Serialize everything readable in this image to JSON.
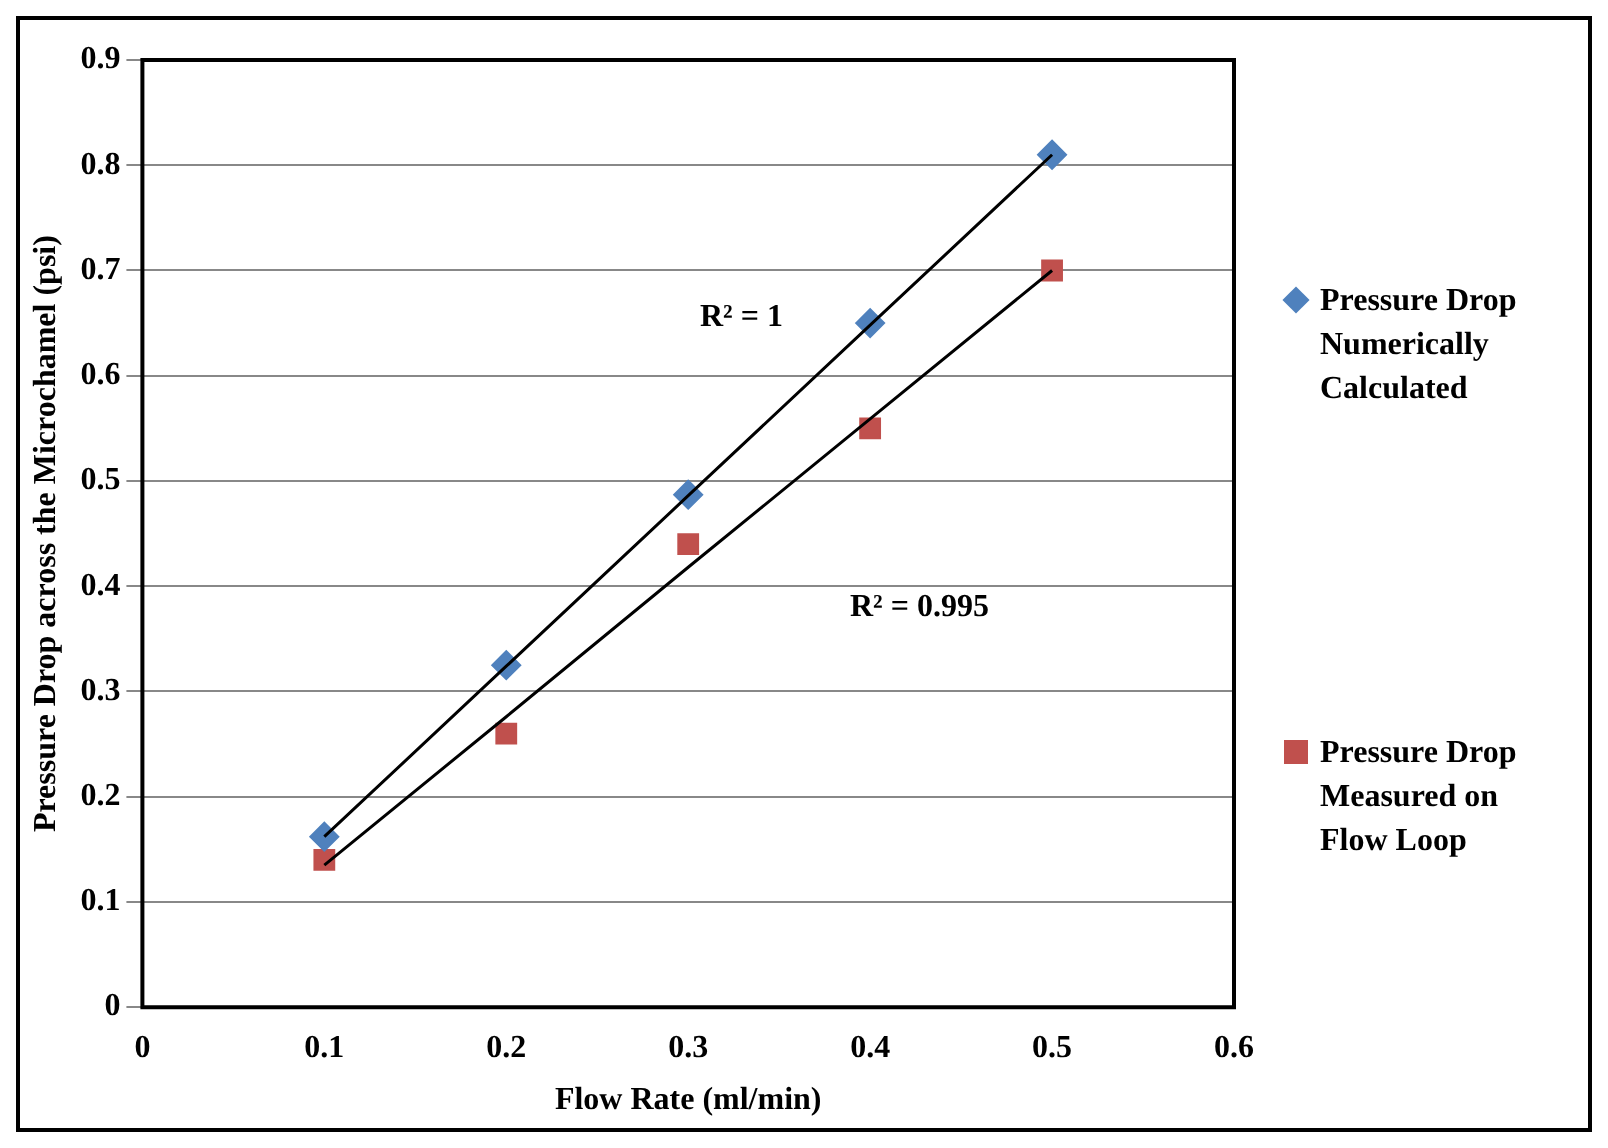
{
  "chart_data": {
    "type": "scatter",
    "xlabel": "Flow Rate (ml/min)",
    "ylabel": "Pressure Drop across the Microchamel (psi)",
    "x": [
      0.1,
      0.2,
      0.3,
      0.4,
      0.5
    ],
    "series": [
      {
        "name": "Pressure Drop Numerically Calculated",
        "color": "#4f81bd",
        "marker": "diamond",
        "values": [
          0.162,
          0.325,
          0.487,
          0.65,
          0.81
        ]
      },
      {
        "name": "Pressure Drop Measured on Flow Loop",
        "color": "#c0504d",
        "marker": "square",
        "values": [
          0.14,
          0.26,
          0.44,
          0.55,
          0.7
        ]
      },
      {
        "type": "line",
        "color": "#000000",
        "values": [
          0.162,
          0.324,
          0.486,
          0.648,
          0.81
        ]
      },
      {
        "type": "line",
        "color": "#000000",
        "values": [
          0.135,
          0.276,
          0.418,
          0.559,
          0.7
        ]
      }
    ],
    "annotations": [
      "R² = 1",
      "R² = 0.995"
    ],
    "xlim": [
      0,
      0.6
    ],
    "xticks": [
      0,
      0.1,
      0.2,
      0.3,
      0.4,
      0.5,
      0.6
    ],
    "ylim": [
      0,
      0.9
    ],
    "yticks": [
      0,
      0.1,
      0.2,
      0.3,
      0.4,
      0.5,
      0.6,
      0.7,
      0.8,
      0.9
    ],
    "grid": "y",
    "legend": "right"
  }
}
